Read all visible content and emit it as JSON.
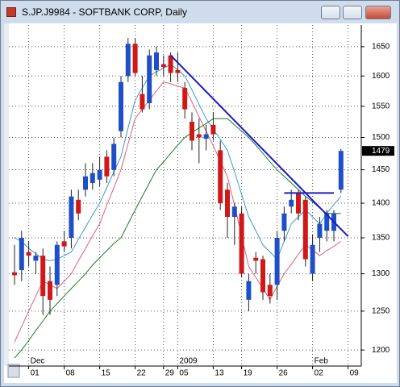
{
  "window": {
    "title": "S.JP.J9984 - SOFTBANK CORP, Daily"
  },
  "chart_data": {
    "type": "candlestick",
    "categories": [
      null,
      null,
      "01",
      null,
      null,
      null,
      null,
      "08",
      null,
      null,
      null,
      null,
      "15",
      null,
      null,
      null,
      null,
      "22",
      null,
      null,
      null,
      "29",
      null,
      "05",
      null,
      null,
      null,
      null,
      "13",
      null,
      null,
      null,
      "19",
      null,
      null,
      null,
      null,
      "26",
      null,
      null,
      null,
      null,
      "02",
      null,
      null,
      null,
      null,
      "09"
    ],
    "period_labels": [
      {
        "at": 2,
        "label": "Dec"
      },
      {
        "at": 23,
        "label": "2009"
      },
      {
        "at": 42,
        "label": "Feb"
      }
    ],
    "open": [
      1302,
      1305,
      1330,
      1318,
      1325,
      1290,
      1285,
      1345,
      1350,
      1405,
      1420,
      1430,
      1435,
      1470,
      1450,
      1510,
      1600,
      1655,
      1570,
      1555,
      1610,
      1620,
      1635,
      1610,
      1580,
      1525,
      1505,
      1498,
      1520,
      1480,
      1420,
      1380,
      1385,
      1265,
      1322,
      1320,
      1285,
      1285,
      1360,
      1395,
      1415,
      1405,
      1300,
      1350,
      1360,
      1360,
      1420,
      null
    ],
    "high": [
      1340,
      1360,
      1345,
      1330,
      1335,
      1310,
      1345,
      1360,
      1420,
      1420,
      1460,
      1460,
      1470,
      1480,
      1500,
      1600,
      1665,
      1665,
      1600,
      1645,
      1650,
      1635,
      1640,
      1640,
      1590,
      1540,
      1530,
      1520,
      1540,
      1495,
      1430,
      1400,
      1395,
      1300,
      1330,
      1325,
      1300,
      1360,
      1395,
      1420,
      1420,
      1410,
      1355,
      1380,
      1390,
      1390,
      1482,
      null
    ],
    "low": [
      1285,
      1290,
      1310,
      1300,
      1245,
      1245,
      1270,
      1330,
      1335,
      1375,
      1410,
      1420,
      1425,
      1430,
      1440,
      1500,
      1590,
      1600,
      1540,
      1545,
      1600,
      1600,
      1590,
      1590,
      1530,
      1480,
      1460,
      1480,
      1495,
      1390,
      1350,
      1340,
      1295,
      1250,
      1300,
      1265,
      1260,
      1265,
      1345,
      1385,
      1375,
      1310,
      1290,
      1330,
      1345,
      1345,
      1415,
      null
    ],
    "close": [
      1298,
      1350,
      1325,
      1325,
      1270,
      1265,
      1340,
      1338,
      1410,
      1385,
      1440,
      1445,
      1450,
      1440,
      1490,
      1590,
      1655,
      1605,
      1545,
      1635,
      1640,
      1615,
      1605,
      1605,
      1545,
      1495,
      1500,
      1505,
      1505,
      1400,
      1380,
      1395,
      1300,
      1290,
      1318,
      1275,
      1270,
      1350,
      1385,
      1405,
      1385,
      1320,
      1340,
      1370,
      1385,
      1385,
      1479,
      null
    ],
    "up_color": "#1f4fc8",
    "down_color": "#d01818",
    "series": [
      {
        "color": "#3a9ad9",
        "values": [
          1350,
          1345,
          1335,
          1328,
          1320,
          1318,
          1320,
          1325,
          1330,
          1348,
          1365,
          1383,
          1400,
          1423,
          1447,
          1470,
          1515,
          1560,
          1580,
          1600,
          1607,
          1613,
          1620,
          1610,
          1600,
          1577,
          1553,
          1530,
          1513,
          1497,
          1480,
          1447,
          1413,
          1380,
          1360,
          1340,
          1330,
          1320,
          1345,
          1370,
          1380,
          1390,
          1380,
          1370,
          1385,
          1398,
          1410,
          null
        ]
      },
      {
        "color": "#e0607a",
        "values": [
          1210,
          1230,
          1250,
          1270,
          1290,
          1285,
          1280,
          1290,
          1300,
          1318,
          1335,
          1353,
          1370,
          1397,
          1423,
          1450,
          1490,
          1530,
          1545,
          1560,
          1575,
          1590,
          1587,
          1583,
          1580,
          1557,
          1533,
          1510,
          1487,
          1463,
          1440,
          1397,
          1353,
          1310,
          1295,
          1280,
          1265,
          1283,
          1300,
          1313,
          1327,
          1340,
          1333,
          1325,
          1332,
          1338,
          1345,
          null
        ]
      },
      {
        "color": "#1b7a2a",
        "values": [
          1190,
          1200,
          1212,
          1225,
          1237,
          1250,
          1260,
          1270,
          1280,
          1290,
          1300,
          1312,
          1322,
          1332,
          1342,
          1350,
          1370,
          1390,
          1410,
          1430,
          1450,
          1462,
          1475,
          1488,
          1500,
          1508,
          1515,
          1522,
          1530,
          1530,
          1530,
          1520,
          1510,
          1500,
          1488,
          1475,
          1462,
          1450,
          1440,
          1430,
          1420,
          1410,
          1402,
          1393,
          1385,
          1385,
          1385,
          null
        ]
      }
    ],
    "trendlines": [
      {
        "color": "#1a1acc",
        "x": [
          22,
          47
        ],
        "y": [
          1635,
          1352
        ]
      },
      {
        "color": "#1a1acc",
        "x": [
          38,
          45
        ],
        "y": [
          1415,
          1415
        ]
      }
    ],
    "ylim": [
      1180,
      1688
    ],
    "yscale": "log",
    "yticks": [
      1200,
      1250,
      1300,
      1350,
      1400,
      1450,
      1500,
      1550,
      1600,
      1650
    ],
    "grid": true
  }
}
